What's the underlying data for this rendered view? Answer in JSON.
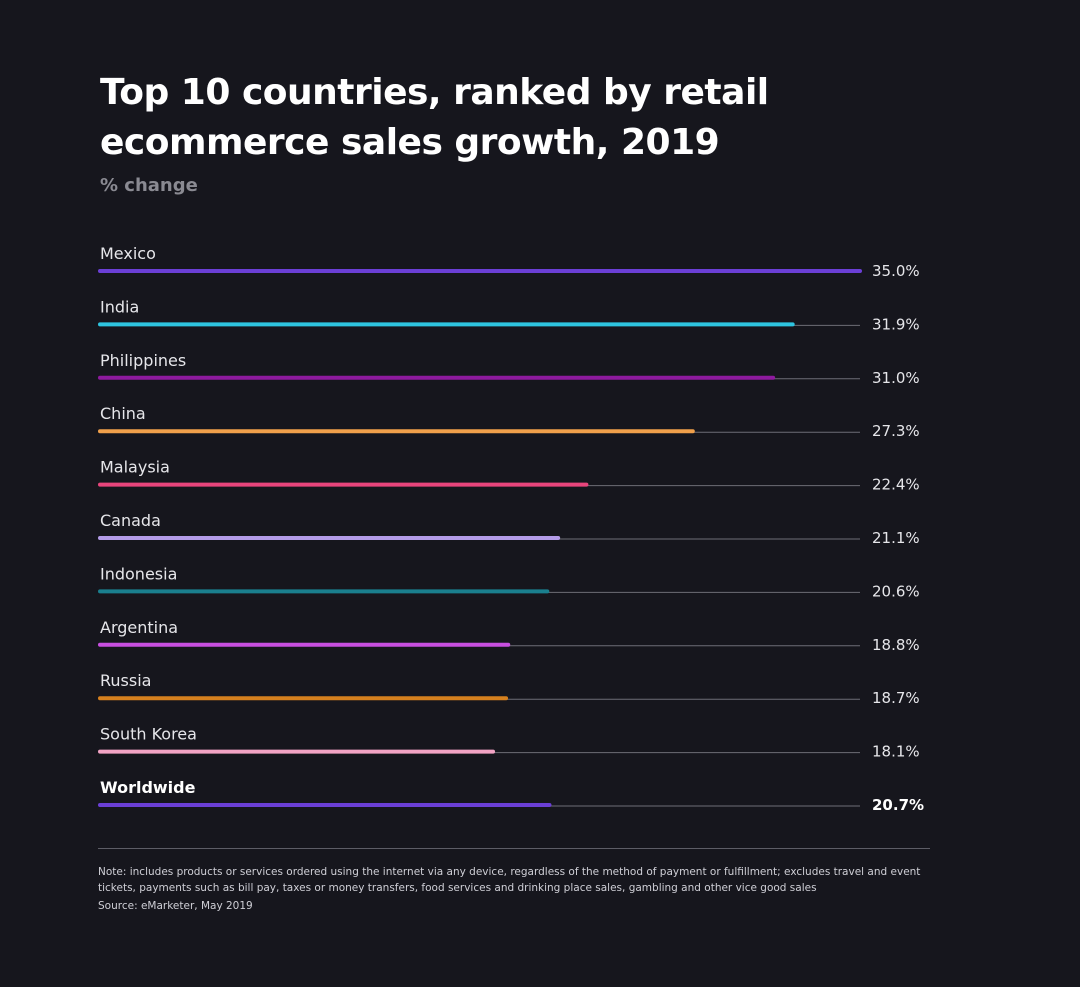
{
  "header": {
    "title": "Top 10 countries, ranked by retail ecommerce sales growth, 2019",
    "subtitle": "% change"
  },
  "chart_data": {
    "type": "bar",
    "orientation": "horizontal",
    "title": "Top 10 countries, ranked by retail ecommerce sales growth, 2019",
    "subtitle": "% change",
    "xlim": [
      0,
      35
    ],
    "grid": false,
    "categories": [
      "Mexico",
      "India",
      "Philippines",
      "China",
      "Malaysia",
      "Canada",
      "Indonesia",
      "Argentina",
      "Russia",
      "South Korea",
      "Worldwide"
    ],
    "values": [
      35.0,
      31.9,
      31.0,
      27.3,
      22.4,
      21.1,
      20.6,
      18.8,
      18.7,
      18.1,
      20.7
    ],
    "value_labels": [
      "35.0%",
      "31.9%",
      "31.0%",
      "27.3%",
      "22.4%",
      "21.1%",
      "20.6%",
      "18.8%",
      "18.7%",
      "18.1%",
      "20.7%"
    ],
    "colors": [
      "#6b3fd6",
      "#2ec4e0",
      "#8e1a9e",
      "#f0a04b",
      "#e8457c",
      "#b49ce8",
      "#1a7f8e",
      "#c84fe0",
      "#d6801e",
      "#f2a3c4",
      "#6b3fd6"
    ],
    "emphasized": [
      "Worldwide"
    ]
  },
  "footer": {
    "note": "Note: includes products or services ordered using the internet via any device, regardless of the method of payment or fulfillment; excludes travel and event tickets, payments such as bill pay, taxes or money transfers, food services and drinking place sales, gambling and other vice good sales",
    "source": "Source: eMarketer, May 2019"
  }
}
